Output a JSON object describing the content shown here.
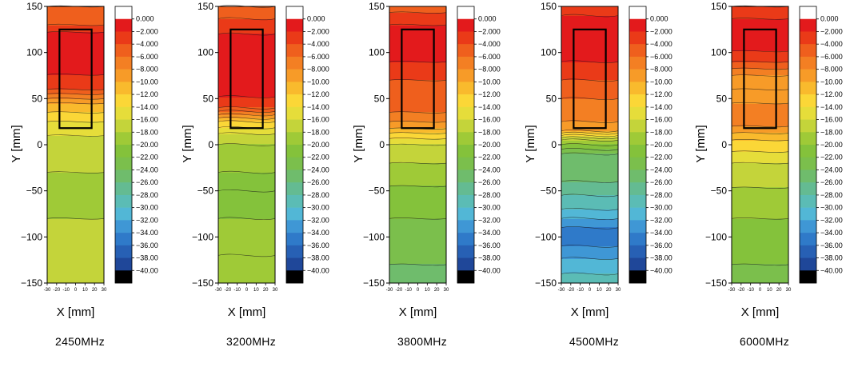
{
  "chart_data": [
    {
      "type": "heatmap",
      "caption": "2450MHz",
      "xlabel": "X [mm]",
      "ylabel": "Y [mm]",
      "xlim": [
        -30,
        30
      ],
      "ylim": [
        -150,
        150
      ],
      "x_ticks": [
        "-30",
        "-20",
        "-10",
        "0",
        "10",
        "20",
        "30"
      ],
      "y_ticks": [
        "150",
        "100",
        "50",
        "0",
        "-50",
        "-100",
        "-150"
      ],
      "outline_rect": {
        "x": [
          -17,
          17
        ],
        "y": [
          18,
          125
        ]
      },
      "profile": [
        {
          "y": 150,
          "v": -6
        },
        {
          "y": 130,
          "v": -4
        },
        {
          "y": 120,
          "v": -1.5
        },
        {
          "y": 100,
          "v": -0.5
        },
        {
          "y": 80,
          "v": -1.5
        },
        {
          "y": 60,
          "v": -4
        },
        {
          "y": 45,
          "v": -10
        },
        {
          "y": 35,
          "v": -12
        },
        {
          "y": 20,
          "v": -15
        },
        {
          "y": 0,
          "v": -17
        },
        {
          "y": -30,
          "v": -18
        },
        {
          "y": -50,
          "v": -19
        },
        {
          "y": -80,
          "v": -18
        },
        {
          "y": -120,
          "v": -17
        },
        {
          "y": -150,
          "v": -17
        }
      ]
    },
    {
      "type": "heatmap",
      "caption": "3200MHz",
      "xlabel": "X [mm]",
      "ylabel": "Y [mm]",
      "xlim": [
        -30,
        30
      ],
      "ylim": [
        -150,
        150
      ],
      "x_ticks": [
        "-30",
        "-20",
        "-10",
        "0",
        "10",
        "20",
        "30"
      ],
      "y_ticks": [
        "150",
        "100",
        "50",
        "0",
        "-50",
        "-100",
        "-150"
      ],
      "outline_rect": {
        "x": [
          -17,
          17
        ],
        "y": [
          18,
          125
        ]
      },
      "profile": [
        {
          "y": 150,
          "v": -6
        },
        {
          "y": 130,
          "v": -3
        },
        {
          "y": 110,
          "v": -1
        },
        {
          "y": 80,
          "v": -0.5
        },
        {
          "y": 55,
          "v": -1.5
        },
        {
          "y": 40,
          "v": -4
        },
        {
          "y": 25,
          "v": -12
        },
        {
          "y": 12,
          "v": -16
        },
        {
          "y": 0,
          "v": -18
        },
        {
          "y": -30,
          "v": -20
        },
        {
          "y": -50,
          "v": -22
        },
        {
          "y": -80,
          "v": -20
        },
        {
          "y": -120,
          "v": -18
        },
        {
          "y": -150,
          "v": -19
        }
      ]
    },
    {
      "type": "heatmap",
      "caption": "3800MHz",
      "xlabel": "X [mm]",
      "ylabel": "Y [mm]",
      "xlim": [
        -30,
        30
      ],
      "ylim": [
        -150,
        150
      ],
      "x_ticks": [
        "-30",
        "-20",
        "-10",
        "0",
        "10",
        "20",
        "30"
      ],
      "y_ticks": [
        "150",
        "100",
        "50",
        "0",
        "-50",
        "-100",
        "-150"
      ],
      "outline_rect": {
        "x": [
          -17,
          17
        ],
        "y": [
          18,
          125
        ]
      },
      "profile": [
        {
          "y": 150,
          "v": -5
        },
        {
          "y": 130,
          "v": -2
        },
        {
          "y": 110,
          "v": -1
        },
        {
          "y": 90,
          "v": -2
        },
        {
          "y": 70,
          "v": -4
        },
        {
          "y": 50,
          "v": -5
        },
        {
          "y": 35,
          "v": -6
        },
        {
          "y": 20,
          "v": -9
        },
        {
          "y": 10,
          "v": -13
        },
        {
          "y": 0,
          "v": -16
        },
        {
          "y": -30,
          "v": -19
        },
        {
          "y": -60,
          "v": -21
        },
        {
          "y": -100,
          "v": -23
        },
        {
          "y": -130,
          "v": -24
        },
        {
          "y": -150,
          "v": -24
        }
      ]
    },
    {
      "type": "heatmap",
      "caption": "4500MHz",
      "xlabel": "X [mm]",
      "ylabel": "Y [mm]",
      "xlim": [
        -30,
        30
      ],
      "ylim": [
        -150,
        150
      ],
      "x_ticks": [
        "-30",
        "-20",
        "-10",
        "0",
        "10",
        "20",
        "30"
      ],
      "y_ticks": [
        "150",
        "100",
        "50",
        "0",
        "-50",
        "-100",
        "-150"
      ],
      "outline_rect": {
        "x": [
          -17,
          17
        ],
        "y": [
          18,
          125
        ]
      },
      "profile": [
        {
          "y": 150,
          "v": -3
        },
        {
          "y": 130,
          "v": -1
        },
        {
          "y": 110,
          "v": -1
        },
        {
          "y": 90,
          "v": -2
        },
        {
          "y": 70,
          "v": -4
        },
        {
          "y": 50,
          "v": -6
        },
        {
          "y": 30,
          "v": -7
        },
        {
          "y": 15,
          "v": -10
        },
        {
          "y": 5,
          "v": -18
        },
        {
          "y": -10,
          "v": -24
        },
        {
          "y": -40,
          "v": -26
        },
        {
          "y": -70,
          "v": -30
        },
        {
          "y": -90,
          "v": -34
        },
        {
          "y": -110,
          "v": -34
        },
        {
          "y": -130,
          "v": -31
        },
        {
          "y": -150,
          "v": -29
        }
      ]
    },
    {
      "type": "heatmap",
      "caption": "6000MHz",
      "xlabel": "X [mm]",
      "ylabel": "Y [mm]",
      "xlim": [
        -30,
        30
      ],
      "ylim": [
        -150,
        150
      ],
      "x_ticks": [
        "-30",
        "-20",
        "-10",
        "0",
        "10",
        "20",
        "30"
      ],
      "y_ticks": [
        "150",
        "100",
        "50",
        "0",
        "-50",
        "-100",
        "-150"
      ],
      "outline_rect": {
        "x": [
          -17,
          17
        ],
        "y": [
          18,
          125
        ]
      },
      "profile": [
        {
          "y": 150,
          "v": -4
        },
        {
          "y": 130,
          "v": -1
        },
        {
          "y": 110,
          "v": -0.5
        },
        {
          "y": 90,
          "v": -4
        },
        {
          "y": 75,
          "v": -8
        },
        {
          "y": 60,
          "v": -10
        },
        {
          "y": 45,
          "v": -8
        },
        {
          "y": 35,
          "v": -7
        },
        {
          "y": 20,
          "v": -8
        },
        {
          "y": 5,
          "v": -12
        },
        {
          "y": -20,
          "v": -16
        },
        {
          "y": -60,
          "v": -19
        },
        {
          "y": -100,
          "v": -21
        },
        {
          "y": -130,
          "v": -22
        },
        {
          "y": -150,
          "v": -24
        }
      ]
    }
  ],
  "colorbar": {
    "labels": [
      "0.000",
      "-2.000",
      "-4.000",
      "-6.000",
      "-8.000",
      "-10.00",
      "-12.00",
      "-14.00",
      "-16.00",
      "-18.00",
      "-20.00",
      "-22.00",
      "-24.00",
      "-26.00",
      "-28.00",
      "-30.00",
      "-32.00",
      "-34.00",
      "-36.00",
      "-38.00",
      "-40.00"
    ],
    "level_colors": [
      "#ffffff",
      "#e31a1c",
      "#ea3a18",
      "#ef5f1d",
      "#f37f23",
      "#f79b28",
      "#f9ba2d",
      "#fbd737",
      "#e6dd3a",
      "#c4d43a",
      "#9fca37",
      "#84c23b",
      "#7bbf4c",
      "#6fbc6c",
      "#64bb92",
      "#5bbcb5",
      "#52b7d6",
      "#3f97d5",
      "#2f7ac9",
      "#2760b4",
      "#1f4799",
      "#000000"
    ]
  }
}
